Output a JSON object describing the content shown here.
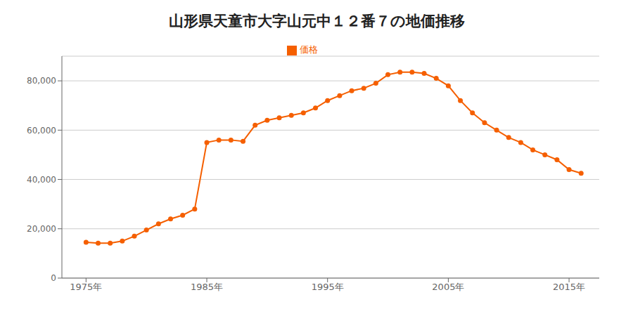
{
  "chart_data": {
    "type": "line",
    "title": "山形県天童市大字山元中１２番７の地価推移",
    "x": [
      1975,
      1976,
      1977,
      1978,
      1979,
      1980,
      1981,
      1982,
      1983,
      1984,
      1985,
      1986,
      1987,
      1988,
      1989,
      1990,
      1991,
      1992,
      1993,
      1994,
      1995,
      1996,
      1997,
      1998,
      1999,
      2000,
      2001,
      2002,
      2003,
      2004,
      2005,
      2006,
      2007,
      2008,
      2009,
      2010,
      2011,
      2012,
      2013,
      2014,
      2015,
      2016
    ],
    "series": [
      {
        "name": "価格",
        "color": "#f55f00",
        "marker": "circle",
        "values": [
          14500,
          14200,
          14200,
          15000,
          17000,
          19500,
          22000,
          24000,
          25500,
          28000,
          55000,
          56000,
          56000,
          55500,
          62000,
          64000,
          65000,
          66000,
          67000,
          69000,
          72000,
          74000,
          76000,
          77000,
          79000,
          82500,
          83500,
          83500,
          83000,
          81000,
          78000,
          72000,
          67000,
          63000,
          60000,
          57000,
          55000,
          52000,
          50000,
          48000,
          44000,
          42500
        ]
      }
    ],
    "xlim": [
      1973,
      2017.5
    ],
    "xticks": [
      {
        "value": 1975,
        "label": "1975年"
      },
      {
        "value": 1985,
        "label": "1985年"
      },
      {
        "value": 1995,
        "label": "1995年"
      },
      {
        "value": 2005,
        "label": "2005年"
      },
      {
        "value": 2015,
        "label": "2015年"
      }
    ],
    "ylim": [
      0,
      90000
    ],
    "yticks": [
      0,
      {
        "value": 20000,
        "label": "20,000"
      },
      {
        "value": 40000,
        "label": "40,000"
      },
      {
        "value": 60000,
        "label": "60,000"
      },
      {
        "value": 80000,
        "label": "80,000"
      }
    ],
    "grid": "y",
    "legend": "top"
  }
}
